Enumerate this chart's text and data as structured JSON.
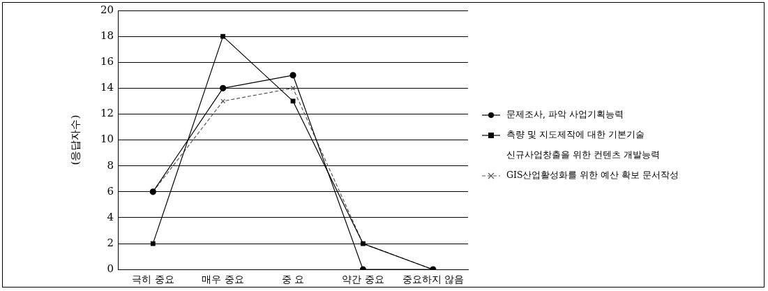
{
  "chart_data": {
    "type": "line",
    "ylabel": "(응답자수)",
    "categories": [
      "극히 중요",
      "매우 중요",
      "중 요",
      "약간 중요",
      "중요하지 않음"
    ],
    "series": [
      {
        "name": "문제조사, 파악 사업기획능력",
        "color": "#000000",
        "marker": "circle",
        "line_style": "solid",
        "values": [
          6,
          14,
          15,
          0,
          0
        ]
      },
      {
        "name": "측량 및 지도제작에 대한 기본기술",
        "color": "#000000",
        "marker": "square",
        "line_style": "solid",
        "values": [
          2,
          18,
          13,
          2,
          0
        ]
      },
      {
        "name": "신규사업창출을 위한 컨텐츠 개발능력",
        "marker": "none",
        "line_style": "solid",
        "values": [
          null,
          null,
          null,
          null,
          null
        ]
      },
      {
        "name": "GIS산업활성화를 위한 예산 확보 문서작성",
        "color": "#555555",
        "marker": "cross",
        "line_style": "dashed",
        "values": [
          6,
          13,
          14,
          2,
          0
        ]
      }
    ],
    "ylim": [
      0,
      20
    ],
    "yticks": [
      0,
      2,
      4,
      6,
      8,
      10,
      12,
      14,
      16,
      18,
      20
    ],
    "grid": "y",
    "legend": "right"
  }
}
